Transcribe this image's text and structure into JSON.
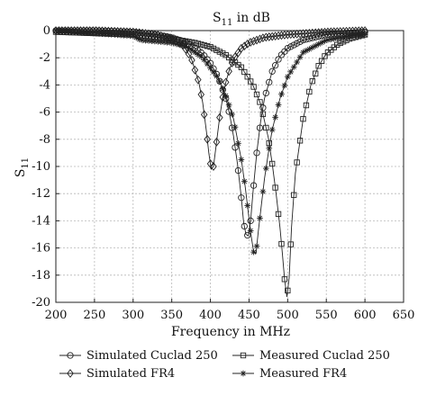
{
  "chart_data": {
    "type": "line",
    "title_main": "S",
    "title_sub": "11",
    "title_rest": " in dB",
    "xlabel": "Frequency in MHz",
    "ylabel_main": "S",
    "ylabel_sub": "11",
    "xlim": [
      200,
      650
    ],
    "ylim": [
      -20,
      0
    ],
    "xticks": [
      200,
      250,
      300,
      350,
      400,
      450,
      500,
      550,
      600,
      650
    ],
    "yticks": [
      0,
      -2,
      -4,
      -6,
      -8,
      -10,
      -12,
      -14,
      -16,
      -18,
      -20
    ],
    "grid": true,
    "legend_position": "bottom",
    "series": [
      {
        "name": "Simulated Cuclad 250",
        "marker": "circle",
        "x": [
          200,
          250,
          300,
          330,
          350,
          370,
          390,
          400,
          410,
          420,
          425,
          430,
          435,
          440,
          443,
          446,
          449,
          452,
          455,
          460,
          465,
          470,
          480,
          490,
          500,
          520,
          550,
          600
        ],
        "y": [
          0,
          0,
          -0.1,
          -0.3,
          -0.5,
          -0.9,
          -1.7,
          -2.4,
          -3.4,
          -5.0,
          -6.2,
          -7.8,
          -9.8,
          -12.3,
          -14.1,
          -15.0,
          -15.1,
          -14.0,
          -12.0,
          -9.0,
          -6.7,
          -5.0,
          -3.0,
          -1.9,
          -1.3,
          -0.7,
          -0.3,
          -0.1
        ]
      },
      {
        "name": "Simulated FR4",
        "marker": "diamond",
        "x": [
          200,
          250,
          300,
          330,
          350,
          365,
          375,
          385,
          390,
          395,
          398,
          401,
          404,
          408,
          412,
          416,
          420,
          425,
          430,
          440,
          450,
          470,
          500,
          550,
          600
        ],
        "y": [
          0,
          0,
          -0.1,
          -0.3,
          -0.6,
          -1.1,
          -2.0,
          -3.8,
          -5.3,
          -7.5,
          -9.0,
          -10.2,
          -10.0,
          -8.2,
          -6.4,
          -4.9,
          -3.8,
          -2.8,
          -2.1,
          -1.3,
          -0.9,
          -0.5,
          -0.3,
          -0.1,
          0
        ]
      },
      {
        "name": "Measured Cuclad 250",
        "marker": "square",
        "x": [
          200,
          250,
          300,
          350,
          380,
          400,
          420,
          440,
          455,
          465,
          475,
          480,
          485,
          490,
          493,
          496,
          499,
          502,
          505,
          510,
          520,
          530,
          540,
          550,
          565,
          580,
          600
        ],
        "y": [
          -0.1,
          -0.2,
          -0.3,
          -0.6,
          -0.9,
          -1.2,
          -1.8,
          -2.7,
          -4.0,
          -5.4,
          -7.9,
          -9.8,
          -12.0,
          -14.5,
          -16.3,
          -18.3,
          -19.6,
          -18.2,
          -14.5,
          -10.5,
          -6.5,
          -4.0,
          -2.6,
          -1.7,
          -1.0,
          -0.6,
          -0.3
        ]
      },
      {
        "name": "Measured FR4",
        "marker": "star",
        "x": [
          200,
          250,
          300,
          310,
          330,
          350,
          370,
          390,
          410,
          420,
          430,
          440,
          445,
          450,
          453,
          456,
          459,
          462,
          466,
          470,
          475,
          480,
          490,
          500,
          520,
          550,
          580,
          600
        ],
        "y": [
          0,
          -0.2,
          -0.4,
          -0.7,
          -0.8,
          -0.9,
          -1.2,
          -2.0,
          -3.5,
          -4.8,
          -6.5,
          -9.5,
          -11.5,
          -13.8,
          -15.2,
          -16.3,
          -16.4,
          -14.8,
          -12.8,
          -10.9,
          -9.0,
          -7.3,
          -5.0,
          -3.4,
          -1.6,
          -0.7,
          -0.4,
          -0.3
        ]
      }
    ]
  }
}
